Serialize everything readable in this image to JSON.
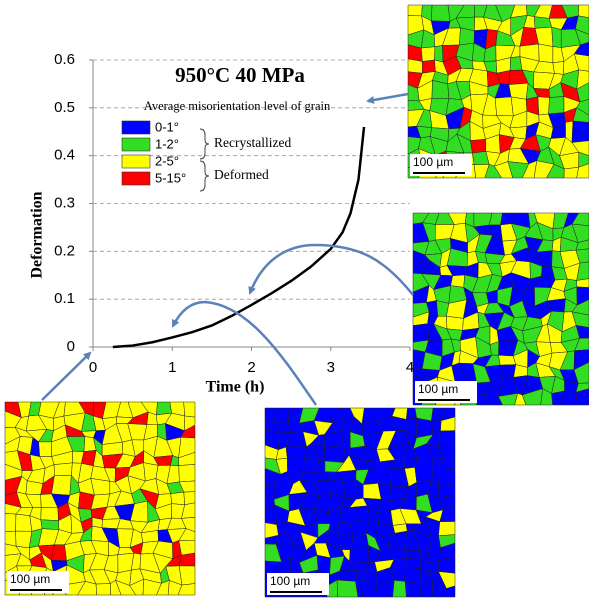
{
  "chart_data": {
    "type": "line",
    "title": "950°C 40 MPa",
    "subtitle": "Average  misorientation level of grain",
    "x_label": "Time (h)",
    "y_label": "Deformation",
    "xlim": [
      0,
      4
    ],
    "ylim": [
      0,
      0.6
    ],
    "xticks": [
      0,
      1,
      2,
      3,
      4
    ],
    "yticks": [
      0,
      0.1,
      0.2,
      0.3,
      0.4,
      0.5,
      0.6
    ],
    "grid": true,
    "series": [
      {
        "color": "#000000",
        "x": [
          0.25,
          0.5,
          0.75,
          1,
          1.25,
          1.5,
          1.75,
          2,
          2.25,
          2.5,
          2.75,
          3,
          3.15,
          3.25,
          3.35,
          3.42
        ],
        "values": [
          0,
          0.003,
          0.01,
          0.02,
          0.031,
          0.045,
          0.065,
          0.088,
          0.112,
          0.138,
          0.168,
          0.205,
          0.24,
          0.28,
          0.35,
          0.46
        ]
      }
    ],
    "legend": {
      "items": [
        {
          "label": "0-1°",
          "color": "#0000ff"
        },
        {
          "label": "1-2°",
          "color": "#33dd22"
        },
        {
          "label": "2-5°",
          "color": "#ffff00"
        },
        {
          "label": "5-15°",
          "color": "#ff0000"
        }
      ],
      "groups": [
        "Recrystallized",
        "Deformed"
      ]
    }
  },
  "maps": [
    {
      "scale_label": "100 µm"
    },
    {
      "scale_label": "100 µm"
    },
    {
      "scale_label": "100 µm"
    },
    {
      "scale_label": "100 µm"
    }
  ]
}
